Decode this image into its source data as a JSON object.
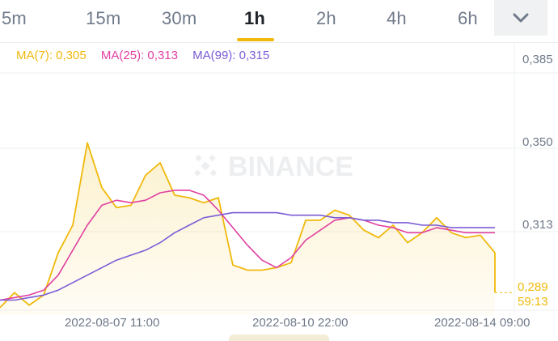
{
  "timeframes": {
    "tabs": [
      "5m",
      "15m",
      "30m",
      "1h",
      "2h",
      "4h",
      "6h"
    ],
    "active": "1h",
    "more_icon": "chevron-down-icon"
  },
  "indicators": {
    "ma7": {
      "label": "MA(7): 0,305",
      "color": "#f0b90b"
    },
    "ma25": {
      "label": "MA(25): 0,313",
      "color": "#e040a0"
    },
    "ma99": {
      "label": "MA(99): 0,315",
      "color": "#7b5cd6"
    }
  },
  "watermark": "BINANCE",
  "price_axis": [
    "0,385",
    "0,350",
    "0,313"
  ],
  "current": {
    "price": "0,289",
    "countdown": "59:13"
  },
  "time_axis": [
    "2022-08-07 11:00",
    "2022-08-10 22:00",
    "2022-08-14 09:00"
  ],
  "chart_data": {
    "type": "line",
    "x": [
      "2022-08-06 06:00",
      "2022-08-06 12:00",
      "2022-08-06 18:00",
      "2022-08-07 00:00",
      "2022-08-07 06:00",
      "2022-08-07 09:00",
      "2022-08-07 11:00",
      "2022-08-07 14:00",
      "2022-08-07 18:00",
      "2022-08-08 00:00",
      "2022-08-08 06:00",
      "2022-08-08 12:00",
      "2022-08-08 18:00",
      "2022-08-09 00:00",
      "2022-08-09 06:00",
      "2022-08-09 12:00",
      "2022-08-09 18:00",
      "2022-08-10 00:00",
      "2022-08-10 06:00",
      "2022-08-10 12:00",
      "2022-08-10 22:00",
      "2022-08-11 06:00",
      "2022-08-11 12:00",
      "2022-08-11 18:00",
      "2022-08-12 00:00",
      "2022-08-12 06:00",
      "2022-08-12 12:00",
      "2022-08-12 18:00",
      "2022-08-13 00:00",
      "2022-08-13 06:00",
      "2022-08-13 12:00",
      "2022-08-13 18:00",
      "2022-08-14 00:00",
      "2022-08-14 06:00",
      "2022-08-14 09:00"
    ],
    "series": [
      {
        "name": "MA(7)",
        "color": "#f0b90b",
        "values": [
          0.283,
          0.289,
          0.284,
          0.288,
          0.305,
          0.316,
          0.349,
          0.331,
          0.323,
          0.324,
          0.336,
          0.341,
          0.328,
          0.327,
          0.325,
          0.327,
          0.3,
          0.298,
          0.298,
          0.299,
          0.301,
          0.318,
          0.318,
          0.322,
          0.32,
          0.314,
          0.311,
          0.316,
          0.309,
          0.313,
          0.319,
          0.313,
          0.311,
          0.312,
          0.305
        ]
      },
      {
        "name": "MA(25)",
        "color": "#e040a0",
        "values": [
          0.286,
          0.287,
          0.288,
          0.29,
          0.296,
          0.306,
          0.316,
          0.324,
          0.326,
          0.325,
          0.326,
          0.329,
          0.33,
          0.33,
          0.328,
          0.322,
          0.315,
          0.308,
          0.302,
          0.299,
          0.303,
          0.31,
          0.314,
          0.318,
          0.319,
          0.318,
          0.316,
          0.315,
          0.313,
          0.313,
          0.315,
          0.314,
          0.313,
          0.313,
          0.313
        ]
      },
      {
        "name": "MA(99)",
        "color": "#7b5cd6",
        "values": [
          0.286,
          0.286,
          0.287,
          0.288,
          0.29,
          0.293,
          0.296,
          0.299,
          0.302,
          0.304,
          0.306,
          0.309,
          0.313,
          0.316,
          0.319,
          0.32,
          0.321,
          0.321,
          0.321,
          0.321,
          0.32,
          0.32,
          0.32,
          0.319,
          0.319,
          0.318,
          0.318,
          0.317,
          0.317,
          0.316,
          0.316,
          0.315,
          0.315,
          0.315,
          0.315
        ]
      }
    ],
    "last_price": 0.289,
    "ylim": [
      0.28,
      0.389
    ],
    "y_ticks": [
      0.385,
      0.35,
      0.313
    ],
    "grid": true,
    "legend_placement": "top-left"
  }
}
